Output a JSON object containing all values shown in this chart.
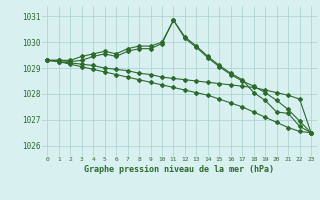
{
  "hours": [
    0,
    1,
    2,
    3,
    4,
    5,
    6,
    7,
    8,
    9,
    10,
    11,
    12,
    13,
    14,
    15,
    16,
    17,
    18,
    19,
    20,
    21,
    22,
    23
  ],
  "line1": [
    1029.3,
    1029.3,
    1029.3,
    1029.45,
    1029.55,
    1029.65,
    1029.55,
    1029.75,
    1029.85,
    1029.85,
    1030.0,
    1030.85,
    1030.2,
    1029.85,
    1029.45,
    1029.1,
    1028.8,
    1028.55,
    1028.05,
    1027.75,
    1027.3,
    1027.25,
    1026.75,
    1026.5
  ],
  "line2": [
    1029.3,
    1029.3,
    1029.25,
    1029.3,
    1029.45,
    1029.55,
    1029.45,
    1029.65,
    1029.75,
    1029.75,
    1029.95,
    1030.85,
    1030.15,
    1029.8,
    1029.4,
    1029.05,
    1028.75,
    1028.5,
    1028.3,
    1028.05,
    1027.75,
    1027.4,
    1026.95,
    1026.5
  ],
  "line3": [
    1029.3,
    1029.25,
    1029.2,
    1029.15,
    1029.1,
    1029.0,
    1028.95,
    1028.9,
    1028.8,
    1028.75,
    1028.65,
    1028.6,
    1028.55,
    1028.5,
    1028.45,
    1028.4,
    1028.35,
    1028.3,
    1028.25,
    1028.15,
    1028.05,
    1027.95,
    1027.8,
    1026.5
  ],
  "line4": [
    1029.3,
    1029.25,
    1029.15,
    1029.05,
    1028.95,
    1028.85,
    1028.75,
    1028.65,
    1028.55,
    1028.45,
    1028.35,
    1028.25,
    1028.15,
    1028.05,
    1027.95,
    1027.8,
    1027.65,
    1027.5,
    1027.3,
    1027.1,
    1026.9,
    1026.7,
    1026.55,
    1026.5
  ],
  "line_color": "#2d6a2d",
  "bg_color": "#d8f0f0",
  "grid_color": "#a8cece",
  "ylabel_values": [
    1026,
    1027,
    1028,
    1029,
    1030,
    1031
  ],
  "xlabel": "Graphe pression niveau de la mer (hPa)",
  "ylim": [
    1025.6,
    1031.4
  ],
  "xlim": [
    -0.5,
    23.5
  ]
}
